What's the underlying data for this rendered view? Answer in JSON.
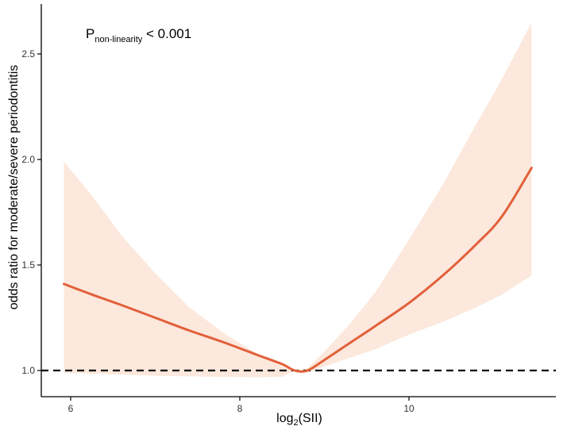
{
  "chart_data": {
    "type": "line",
    "title": "",
    "xlabel": {
      "base": "log",
      "subscript": "2",
      "rest": "(SII)"
    },
    "ylabel": "odds ratio for moderate/severe periodontitis",
    "annotation": {
      "main": "P",
      "subscript": "non-linearity",
      "rest": " < 0.001"
    },
    "xlim": [
      5.7,
      11.7
    ],
    "ylim": [
      0.93,
      2.72
    ],
    "x_ticks": [
      6,
      8,
      10
    ],
    "y_ticks": [
      1.0,
      1.5,
      2.0,
      2.5
    ],
    "x_tick_labels": [
      "6",
      "8",
      "10"
    ],
    "y_tick_labels": [
      "1.0",
      "1.5",
      "2.0",
      "2.5"
    ],
    "reference_line": {
      "y": 1.0,
      "style": "dashed"
    },
    "grid": false,
    "series": [
      {
        "x": [
          5.92,
          6.25,
          6.6,
          7.0,
          7.4,
          7.8,
          8.2,
          8.5,
          8.65,
          8.8,
          9.0,
          9.3,
          9.6,
          10.0,
          10.4,
          10.8,
          11.1,
          11.45
        ],
        "y": [
          1.41,
          1.36,
          1.31,
          1.25,
          1.19,
          1.135,
          1.075,
          1.03,
          1.0,
          1.0,
          1.05,
          1.13,
          1.21,
          1.32,
          1.45,
          1.6,
          1.73,
          1.96
        ],
        "lower": [
          0.99,
          0.985,
          0.98,
          0.975,
          0.972,
          0.97,
          0.968,
          0.97,
          1.0,
          0.99,
          1.02,
          1.06,
          1.1,
          1.17,
          1.23,
          1.3,
          1.36,
          1.45
        ],
        "upper": [
          1.99,
          1.83,
          1.64,
          1.46,
          1.3,
          1.18,
          1.08,
          1.02,
          1.0,
          1.01,
          1.09,
          1.22,
          1.37,
          1.62,
          1.88,
          2.17,
          2.38,
          2.65
        ]
      }
    ]
  },
  "colors": {
    "line": "#E2603A",
    "band": "#FCE8DC",
    "axis": "#000000",
    "reference": "#000000"
  }
}
